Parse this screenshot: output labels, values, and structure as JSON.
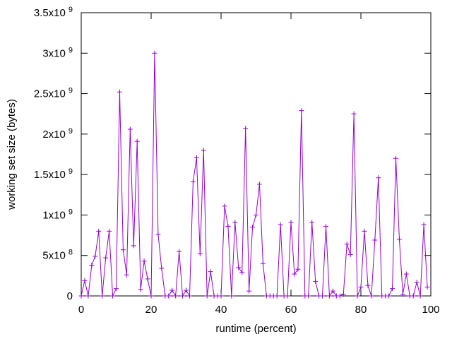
{
  "chart_data": {
    "type": "line",
    "title": "",
    "xlabel": "runtime (percent)",
    "ylabel": "working set size (bytes)",
    "xlim": [
      0,
      100
    ],
    "ylim": [
      0,
      3500000000
    ],
    "grid": false,
    "legend": "none",
    "x_ticks": [
      {
        "value": 0,
        "label": "0"
      },
      {
        "value": 20,
        "label": "20"
      },
      {
        "value": 40,
        "label": "40"
      },
      {
        "value": 60,
        "label": "60"
      },
      {
        "value": 80,
        "label": "80"
      },
      {
        "value": 100,
        "label": "100"
      }
    ],
    "y_ticks": [
      {
        "value": 0,
        "label": "0",
        "exp": ""
      },
      {
        "value": 500000000,
        "label": "5x10",
        "exp": "8"
      },
      {
        "value": 1000000000,
        "label": "1x10",
        "exp": "9"
      },
      {
        "value": 1500000000,
        "label": "1.5x10",
        "exp": "9"
      },
      {
        "value": 2000000000,
        "label": "2x10",
        "exp": "9"
      },
      {
        "value": 2500000000,
        "label": "2.5x10",
        "exp": "9"
      },
      {
        "value": 3000000000,
        "label": "3x10",
        "exp": "9"
      },
      {
        "value": 3500000000,
        "label": "3.5x10",
        "exp": "9"
      }
    ],
    "series": [
      {
        "color": "#9400d3",
        "marker": "+",
        "x": [
          0,
          1,
          2,
          3,
          4,
          5,
          6,
          7,
          8,
          9,
          10,
          11,
          12,
          13,
          14,
          15,
          16,
          17,
          18,
          19,
          20,
          21,
          22,
          23,
          24,
          25,
          26,
          27,
          28,
          29,
          30,
          31,
          32,
          33,
          34,
          35,
          36,
          37,
          38,
          39,
          40,
          41,
          42,
          43,
          44,
          45,
          46,
          47,
          48,
          49,
          50,
          51,
          52,
          53,
          54,
          55,
          56,
          57,
          58,
          59,
          60,
          61,
          62,
          63,
          64,
          65,
          66,
          67,
          68,
          69,
          70,
          71,
          72,
          73,
          74,
          75,
          76,
          77,
          78,
          79,
          80,
          81,
          82,
          83,
          84,
          85,
          86,
          87,
          88,
          89,
          90,
          91,
          92,
          93,
          94,
          95,
          96,
          97,
          98,
          99
        ],
        "y": [
          0,
          190000000,
          0,
          380000000,
          490000000,
          800000000,
          0,
          470000000,
          800000000,
          0,
          90000000,
          2520000000,
          570000000,
          260000000,
          2060000000,
          620000000,
          1910000000,
          80000000,
          430000000,
          210000000,
          0,
          3000000000,
          760000000,
          340000000,
          0,
          0,
          70000000,
          0,
          550000000,
          0,
          70000000,
          0,
          1410000000,
          1710000000,
          520000000,
          1800000000,
          0,
          300000000,
          0,
          0,
          0,
          1110000000,
          860000000,
          0,
          910000000,
          350000000,
          290000000,
          2070000000,
          60000000,
          850000000,
          1000000000,
          1380000000,
          400000000,
          0,
          0,
          0,
          0,
          880000000,
          0,
          0,
          910000000,
          270000000,
          330000000,
          2290000000,
          0,
          0,
          910000000,
          180000000,
          0,
          0,
          860000000,
          0,
          60000000,
          0,
          0,
          20000000,
          640000000,
          510000000,
          2250000000,
          0,
          110000000,
          800000000,
          130000000,
          0,
          690000000,
          1460000000,
          0,
          0,
          0,
          90000000,
          1700000000,
          700000000,
          20000000,
          270000000,
          0,
          0,
          170000000,
          0,
          880000000,
          110000000
        ]
      }
    ]
  }
}
